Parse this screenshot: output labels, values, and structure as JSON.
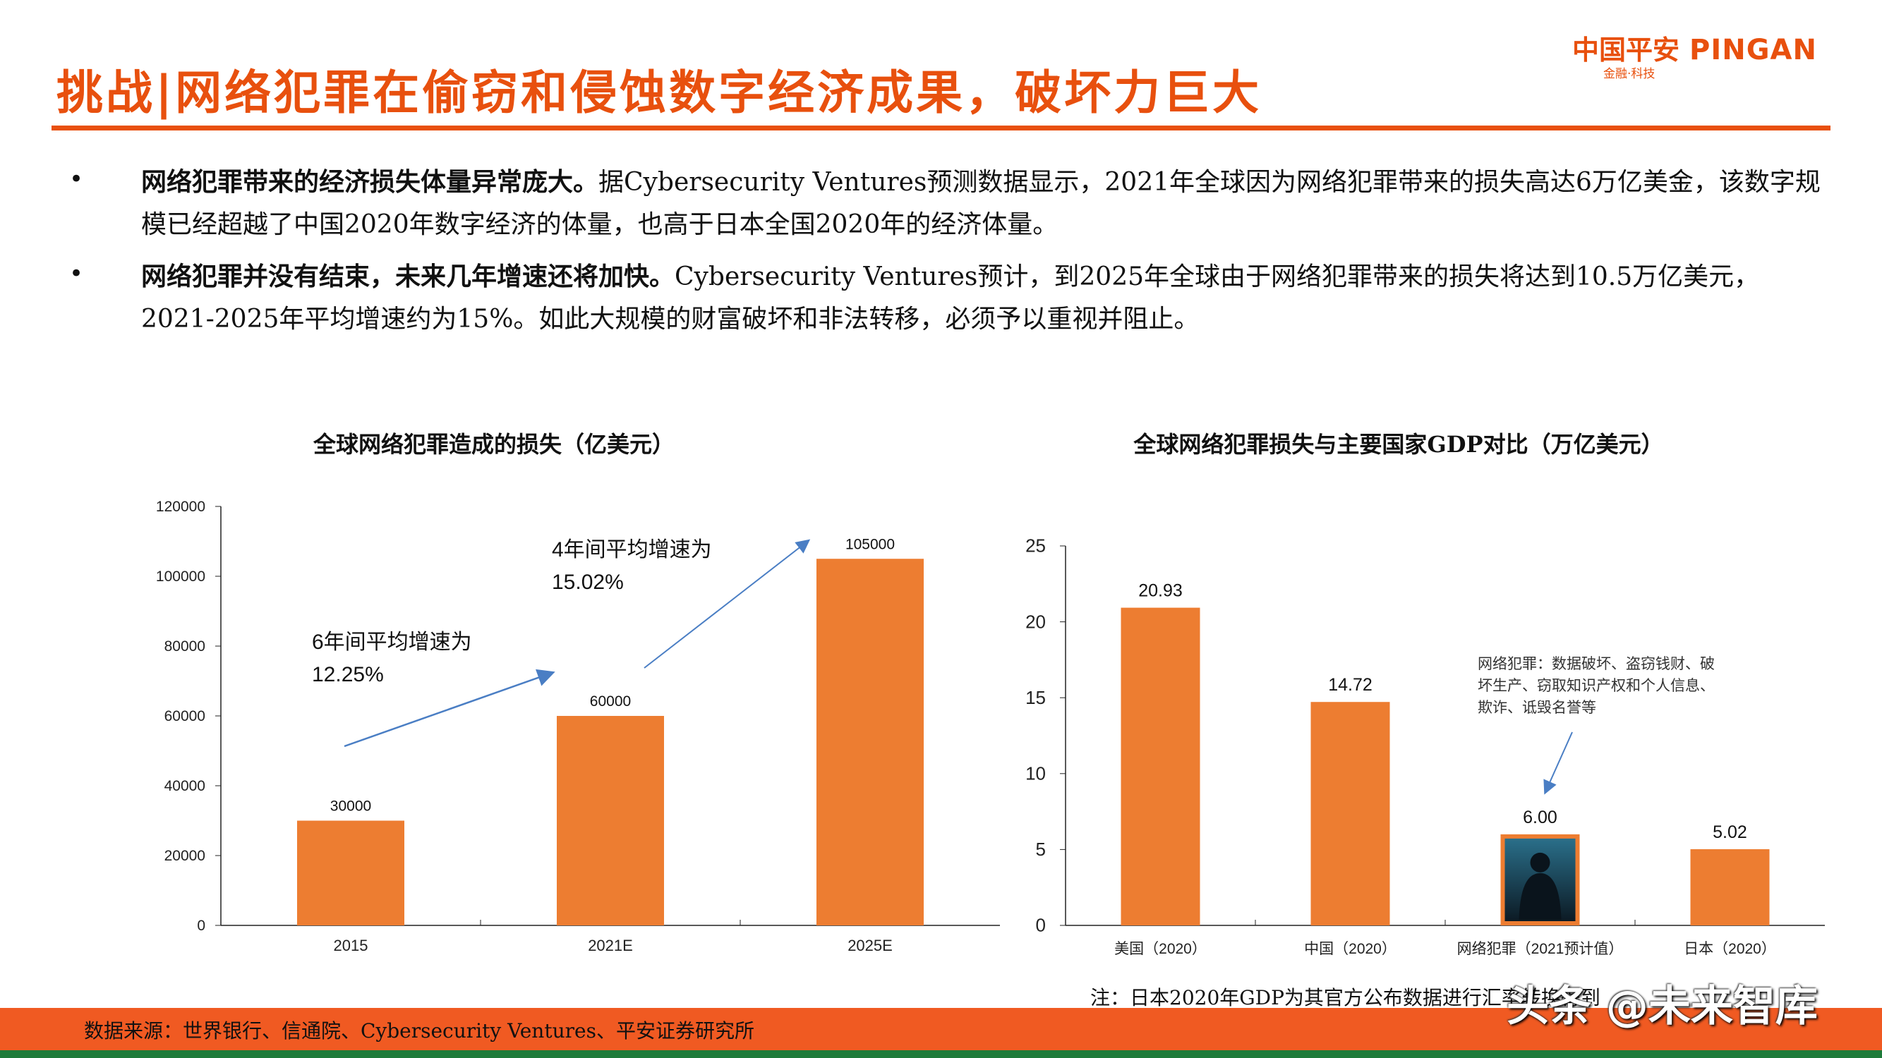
{
  "header": {
    "title": "挑战|网络犯罪在偷窃和侵蚀数字经济成果，破坏力巨大",
    "logo_cn": "中国平安",
    "logo_en": "PINGAN",
    "logo_sub": "金融·科技"
  },
  "bullets": [
    {
      "bold": "网络犯罪带来的经济损失体量异常庞大。",
      "text": "据Cybersecurity Ventures预测数据显示，2021年全球因为网络犯罪带来的损失高达6万亿美金，该数字规模已经超越了中国2020年数字经济的体量，也高于日本全国2020年的经济体量。"
    },
    {
      "bold": "网络犯罪并没有结束，未来几年增速还将加快。",
      "text": "Cybersecurity Ventures预计，到2025年全球由于网络犯罪带来的损失将达到10.5万亿美元，2021-2025年平均增速约为15%。如此大规模的财富破坏和非法转移，必须予以重视并阻止。"
    }
  ],
  "chart_data": [
    {
      "type": "bar",
      "title": "全球网络犯罪造成的损失（亿美元）",
      "categories": [
        "2015",
        "2021E",
        "2025E"
      ],
      "values": [
        30000,
        60000,
        105000
      ],
      "data_labels": [
        "30000",
        "60000",
        "105000"
      ],
      "ylim": [
        0,
        120000
      ],
      "yticks": [
        "0",
        "20000",
        "40000",
        "60000",
        "80000",
        "100000",
        "120000"
      ],
      "grid": false,
      "bar_color": "#ED7D31",
      "annotations": [
        {
          "line1": "6年间平均增速为",
          "line2": "12.25%"
        },
        {
          "line1": "4年间平均增速为",
          "line2": "15.02%"
        }
      ]
    },
    {
      "type": "bar",
      "title": "全球网络犯罪损失与主要国家GDP对比（万亿美元）",
      "categories": [
        "美国（2020）",
        "中国（2020）",
        "网络犯罪（2021预计值）",
        "日本（2020）"
      ],
      "values": [
        20.93,
        14.72,
        6.0,
        5.02
      ],
      "data_labels": [
        "20.93",
        "14.72",
        "6.00",
        "5.02"
      ],
      "ylim": [
        0,
        25
      ],
      "yticks": [
        "0",
        "5",
        "10",
        "15",
        "20",
        "25"
      ],
      "grid": false,
      "bar_color": "#ED7D31",
      "annotation": [
        "网络犯罪：数据破坏、盗窃钱财、破",
        "坏生产、窃取知识产权和个人信息、",
        "欺诈、诋毁名誉等"
      ]
    }
  ],
  "note": "注：日本2020年GDP为其官方公布数据进行汇率转换得到",
  "footer": {
    "source": "数据来源：世界银行、信通院、Cybersecurity Ventures、平安证券研究所",
    "watermark": "头条 @未来智库"
  },
  "colors": {
    "accent": "#E8500E",
    "bar": "#ED7D31",
    "footer": "#F05A22",
    "footer_line": "#1E7B3A",
    "arrow": "#4A7EC4"
  }
}
